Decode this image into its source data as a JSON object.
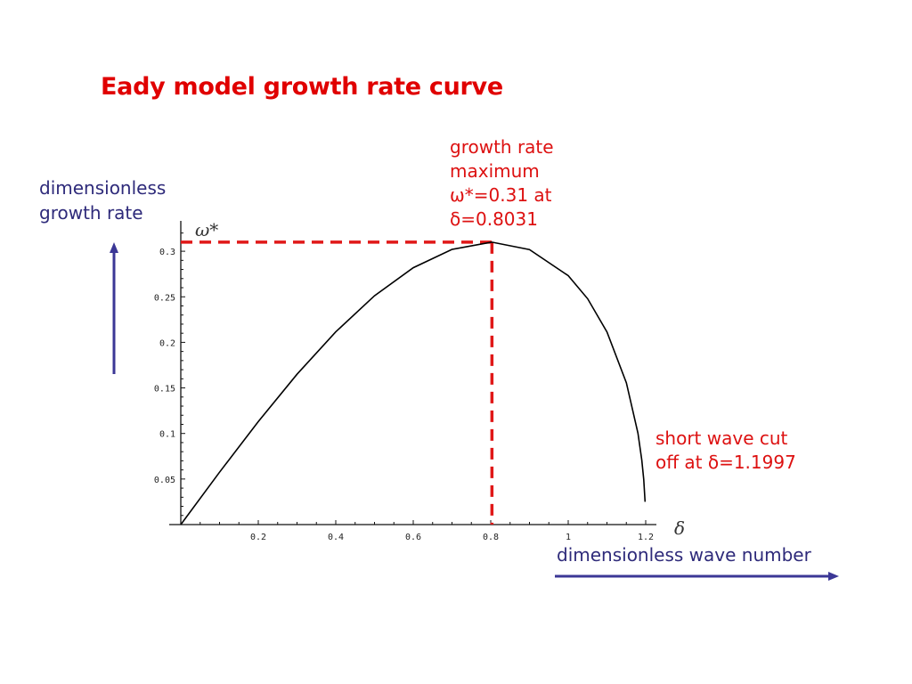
{
  "title": "Eady model growth rate curve",
  "annotations": {
    "max_note": [
      "growth rate",
      "maximum",
      "ω*=0.31 at",
      "δ=0.8031"
    ],
    "cutoff_note": [
      "short wave cut",
      "off at δ=1.1997"
    ],
    "y_arrow_label": [
      "dimensionless",
      "growth rate"
    ],
    "x_arrow_label": "dimensionless wave number"
  },
  "colors": {
    "title": "#e00000",
    "annotation_red": "#dd1111",
    "annotation_blue": "#2e2a7a",
    "arrow": "#3b3796",
    "dashed_guide": "#e01818",
    "curve": "#000000"
  },
  "chart_data": {
    "type": "line",
    "title": "Eady model growth rate curve",
    "xlabel": "δ",
    "ylabel": "ω*",
    "xlim": [
      0,
      1.22
    ],
    "ylim": [
      0,
      0.32
    ],
    "x_ticks": [
      0.2,
      0.4,
      0.6,
      0.8,
      1,
      1.2
    ],
    "x_tick_labels": [
      "0.2",
      "0.4",
      "0.6",
      "0.8",
      "1",
      "1.2"
    ],
    "y_ticks": [
      0.05,
      0.1,
      0.15,
      0.2,
      0.25,
      0.3
    ],
    "y_tick_labels": [
      "0.05",
      "0.1",
      "0.15",
      "0.2",
      "0.25",
      "0.3"
    ],
    "grid": false,
    "legend": null,
    "series": [
      {
        "name": "growth rate",
        "x": [
          0,
          0.1,
          0.2,
          0.3,
          0.4,
          0.5,
          0.6,
          0.7,
          0.8,
          0.8031,
          0.9,
          1.0,
          1.05,
          1.1,
          1.15,
          1.18,
          1.19,
          1.195,
          1.1985
        ],
        "y": [
          0,
          0.0575,
          0.113,
          0.165,
          0.2115,
          0.2511,
          0.2819,
          0.3021,
          0.3098,
          0.31,
          0.3019,
          0.2732,
          0.2479,
          0.2114,
          0.1556,
          0.1003,
          0.0709,
          0.0495,
          0.025
        ]
      }
    ],
    "reference_lines": [
      {
        "type": "horizontal",
        "y": 0.31,
        "from_x": 0,
        "to_x": 0.8031,
        "style": "dashed",
        "color": "#e01818"
      },
      {
        "type": "vertical",
        "x": 0.8031,
        "from_y": 0,
        "to_y": 0.31,
        "style": "dashed",
        "color": "#e01818"
      }
    ],
    "annotations": [
      {
        "text": "growth rate maximum ω*=0.31 at δ=0.8031",
        "x": 0.8031,
        "y": 0.31
      },
      {
        "text": "short wave cut off at δ=1.1997",
        "x": 1.1997,
        "y": 0
      }
    ]
  }
}
